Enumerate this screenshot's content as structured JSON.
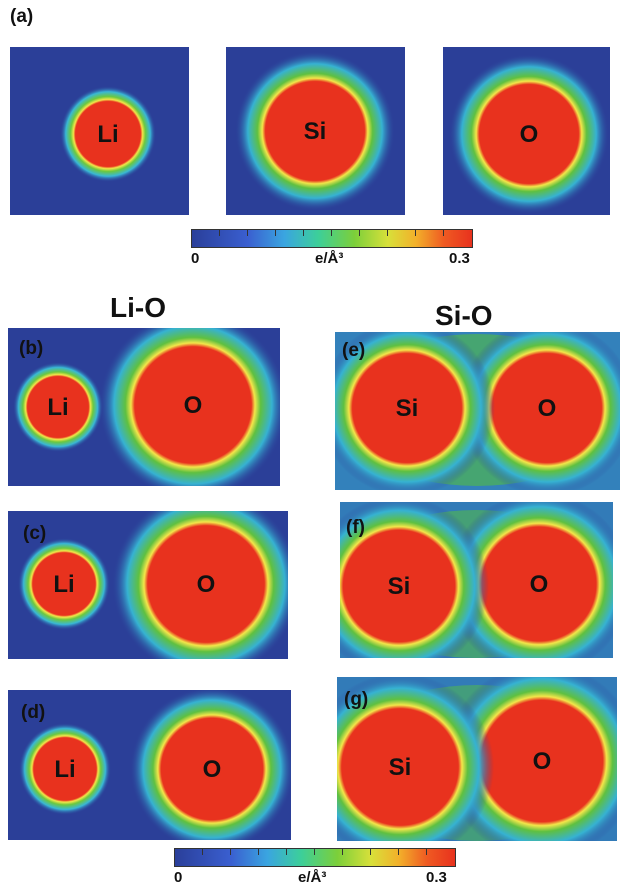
{
  "figure": {
    "label_a": "(a)",
    "col_li_o": "Li-O",
    "col_si_o": "Si-O"
  },
  "colorbar": {
    "min_label": "0",
    "unit_label": "e/Å³",
    "max_label": "0.3",
    "min": 0,
    "max": 0.3
  },
  "panels": {
    "a1": {
      "atoms": [
        "Li"
      ]
    },
    "a2": {
      "atoms": [
        "Si"
      ]
    },
    "a3": {
      "atoms": [
        "O"
      ]
    },
    "b": {
      "label": "(b)",
      "atoms": [
        "Li",
        "O"
      ]
    },
    "c": {
      "label": "(c)",
      "atoms": [
        "Li",
        "O"
      ]
    },
    "d": {
      "label": "(d)",
      "atoms": [
        "Li",
        "O"
      ]
    },
    "e": {
      "label": "(e)",
      "atoms": [
        "Si",
        "O"
      ]
    },
    "f": {
      "label": "(f)",
      "atoms": [
        "Si",
        "O"
      ]
    },
    "g": {
      "label": "(g)",
      "atoms": [
        "Si",
        "O"
      ]
    }
  },
  "colors": {
    "background": "#2b3f98",
    "core": "#e8321e",
    "yellow": "#f0e040",
    "green": "#52b94a",
    "cyan": "#3ab8d8"
  }
}
